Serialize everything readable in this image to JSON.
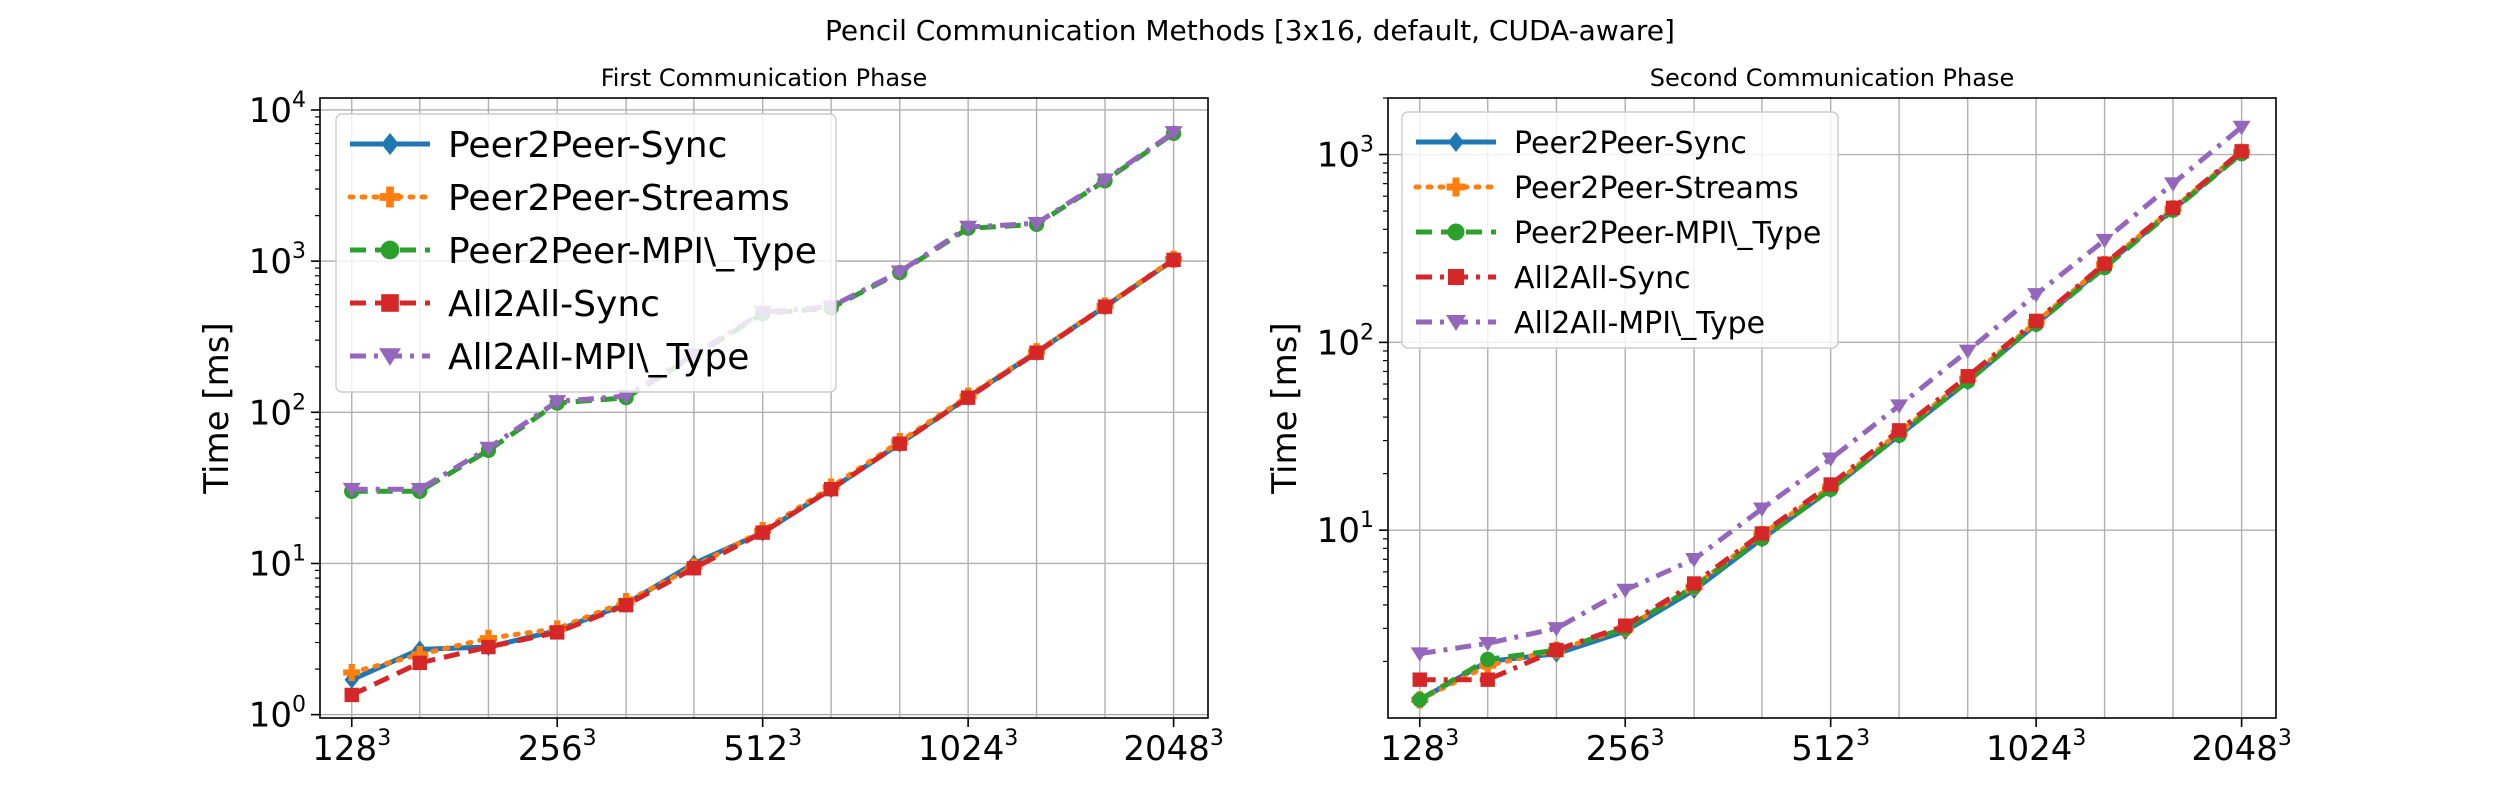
{
  "figure": {
    "title": "Pencil Communication Methods [3x16, default, CUDA-aware]"
  },
  "colors": {
    "Peer2Peer-Sync": "#1f77b4",
    "Peer2Peer-Streams": "#ff7f0e",
    "Peer2Peer-MPI\\_Type": "#2ca02c",
    "All2All-Sync": "#d62728",
    "All2All-MPI\\_Type": "#9467bd"
  },
  "chart_data": [
    {
      "type": "line",
      "title": "First Communication Phase",
      "xlabel": "",
      "ylabel": "Time [ms]",
      "yscale": "log",
      "ylim": [
        0.95,
        12000
      ],
      "xlim": [
        115,
        2300
      ],
      "xscale": "log2",
      "grid": true,
      "legend": "top-left",
      "x": [
        128,
        161,
        203,
        256,
        323,
        406,
        512,
        645,
        813,
        1024,
        1290,
        1625,
        2048
      ],
      "xticks": [
        {
          "value": 128,
          "base": "128",
          "exp": "3"
        },
        {
          "value": 256,
          "base": "256",
          "exp": "3"
        },
        {
          "value": 512,
          "base": "512",
          "exp": "3"
        },
        {
          "value": 1024,
          "base": "1024",
          "exp": "3"
        },
        {
          "value": 2048,
          "base": "2048",
          "exp": "3"
        }
      ],
      "yticks": [
        {
          "value": 1,
          "base": "10",
          "exp": "0"
        },
        {
          "value": 10,
          "base": "10",
          "exp": "1"
        },
        {
          "value": 100,
          "base": "10",
          "exp": "2"
        },
        {
          "value": 1000,
          "base": "10",
          "exp": "3"
        },
        {
          "value": 10000,
          "base": "10",
          "exp": "4"
        }
      ],
      "series": [
        {
          "name": "Peer2Peer-Sync",
          "marker": "diamond",
          "dash": "solid",
          "values": [
            1.7,
            2.7,
            2.8,
            3.6,
            5.4,
            10,
            16,
            31,
            62,
            126,
            250,
            500,
            1020
          ]
        },
        {
          "name": "Peer2Peer-Streams",
          "marker": "plus",
          "dash": "dotted",
          "values": [
            1.9,
            2.5,
            3.2,
            3.7,
            5.6,
            9.5,
            16.5,
            32,
            64,
            128,
            252,
            505,
            1030
          ]
        },
        {
          "name": "Peer2Peer-MPI\\_Type",
          "marker": "circle",
          "dash": "dashed",
          "values": [
            30,
            30,
            56,
            115,
            125,
            235,
            450,
            490,
            840,
            1650,
            1750,
            3400,
            7000
          ]
        },
        {
          "name": "All2All-Sync",
          "marker": "square",
          "dash": "dashed",
          "values": [
            1.35,
            2.2,
            2.8,
            3.5,
            5.3,
            9.3,
            16,
            31,
            62,
            125,
            248,
            500,
            1020
          ]
        },
        {
          "name": "All2All-MPI\\_Type",
          "marker": "triangle-down",
          "dash": "dashdot",
          "values": [
            31,
            31,
            58,
            118,
            128,
            240,
            460,
            500,
            850,
            1680,
            1780,
            3450,
            7100
          ]
        }
      ]
    },
    {
      "type": "line",
      "title": "Second Communication Phase",
      "xlabel": "",
      "ylabel": "Time [ms]",
      "yscale": "log",
      "ylim": [
        1.0,
        2000
      ],
      "xlim": [
        115,
        2300
      ],
      "xscale": "log2",
      "grid": true,
      "legend": "top-left",
      "x": [
        128,
        161,
        203,
        256,
        323,
        406,
        512,
        645,
        813,
        1024,
        1290,
        1625,
        2048
      ],
      "xticks": [
        {
          "value": 128,
          "base": "128",
          "exp": "3"
        },
        {
          "value": 256,
          "base": "256",
          "exp": "3"
        },
        {
          "value": 512,
          "base": "512",
          "exp": "3"
        },
        {
          "value": 1024,
          "base": "1024",
          "exp": "3"
        },
        {
          "value": 2048,
          "base": "2048",
          "exp": "3"
        }
      ],
      "yticks": [
        {
          "value": 10,
          "base": "10",
          "exp": "1"
        },
        {
          "value": 100,
          "base": "10",
          "exp": "2"
        },
        {
          "value": 1000,
          "base": "10",
          "exp": "3"
        }
      ],
      "series": [
        {
          "name": "Peer2Peer-Sync",
          "marker": "diamond",
          "dash": "solid",
          "values": [
            1.25,
            2.0,
            2.2,
            2.9,
            4.8,
            9.0,
            16.5,
            32,
            62,
            125,
            255,
            510,
            1020
          ]
        },
        {
          "name": "Peer2Peer-Streams",
          "marker": "plus",
          "dash": "dotted",
          "values": [
            1.25,
            1.9,
            2.3,
            3.0,
            5.0,
            9.5,
            17,
            33,
            64,
            128,
            260,
            515,
            1030
          ]
        },
        {
          "name": "Peer2Peer-MPI\\_Type",
          "marker": "circle",
          "dash": "dashed",
          "values": [
            1.25,
            2.05,
            2.3,
            3.0,
            5.0,
            9.0,
            16.5,
            32,
            62,
            125,
            250,
            505,
            1010
          ]
        },
        {
          "name": "All2All-Sync",
          "marker": "square",
          "dash": "dashdot",
          "values": [
            1.6,
            1.6,
            2.3,
            3.1,
            5.2,
            9.6,
            17.5,
            34,
            66,
            130,
            262,
            520,
            1040
          ]
        },
        {
          "name": "All2All-MPI\\_Type",
          "marker": "triangle-down",
          "dash": "dashdot",
          "values": [
            2.2,
            2.5,
            3.0,
            4.8,
            7.0,
            13,
            24,
            46,
            90,
            180,
            350,
            700,
            1400
          ]
        }
      ]
    }
  ]
}
